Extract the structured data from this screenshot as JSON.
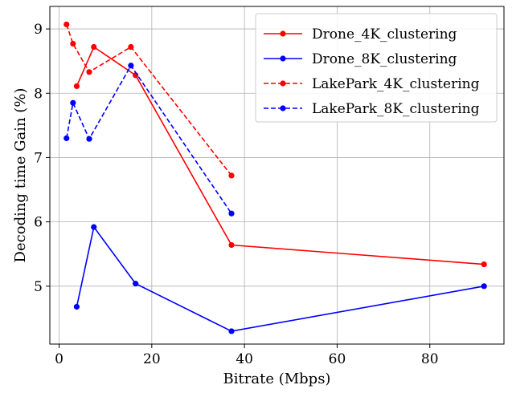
{
  "chart_data": {
    "type": "line",
    "title": "",
    "xlabel": "Bitrate (Mbps)",
    "ylabel": "Decoding time Gain (%)",
    "xlim": [
      -2,
      96
    ],
    "ylim": [
      4.1,
      9.35
    ],
    "xticks": [
      0,
      20,
      40,
      60,
      80
    ],
    "yticks": [
      5,
      6,
      7,
      8,
      9
    ],
    "grid": true,
    "legend_position": "top-right",
    "series": [
      {
        "name": "Drone_4K_clustering",
        "color": "#ff0000",
        "dashed": false,
        "points": [
          [
            3.8,
            8.11
          ],
          [
            7.5,
            8.72
          ],
          [
            16.5,
            8.28
          ],
          [
            37.2,
            5.64
          ],
          [
            91.7,
            5.34
          ]
        ]
      },
      {
        "name": "Drone_8K_clustering",
        "color": "#0000ff",
        "dashed": false,
        "points": [
          [
            3.8,
            4.68
          ],
          [
            7.5,
            5.92
          ],
          [
            16.5,
            5.04
          ],
          [
            37.2,
            4.3
          ],
          [
            91.7,
            5.0
          ]
        ]
      },
      {
        "name": "LakePark_4K_clustering",
        "color": "#ff0000",
        "dashed": true,
        "points": [
          [
            1.6,
            9.07
          ],
          [
            3.0,
            8.77
          ],
          [
            6.5,
            8.33
          ],
          [
            15.5,
            8.72
          ],
          [
            37.2,
            6.72
          ]
        ]
      },
      {
        "name": "LakePark_8K_clustering",
        "color": "#0000ff",
        "dashed": true,
        "points": [
          [
            1.6,
            7.3
          ],
          [
            3.0,
            7.85
          ],
          [
            6.5,
            7.29
          ],
          [
            15.5,
            8.43
          ],
          [
            37.2,
            6.13
          ]
        ]
      }
    ]
  }
}
